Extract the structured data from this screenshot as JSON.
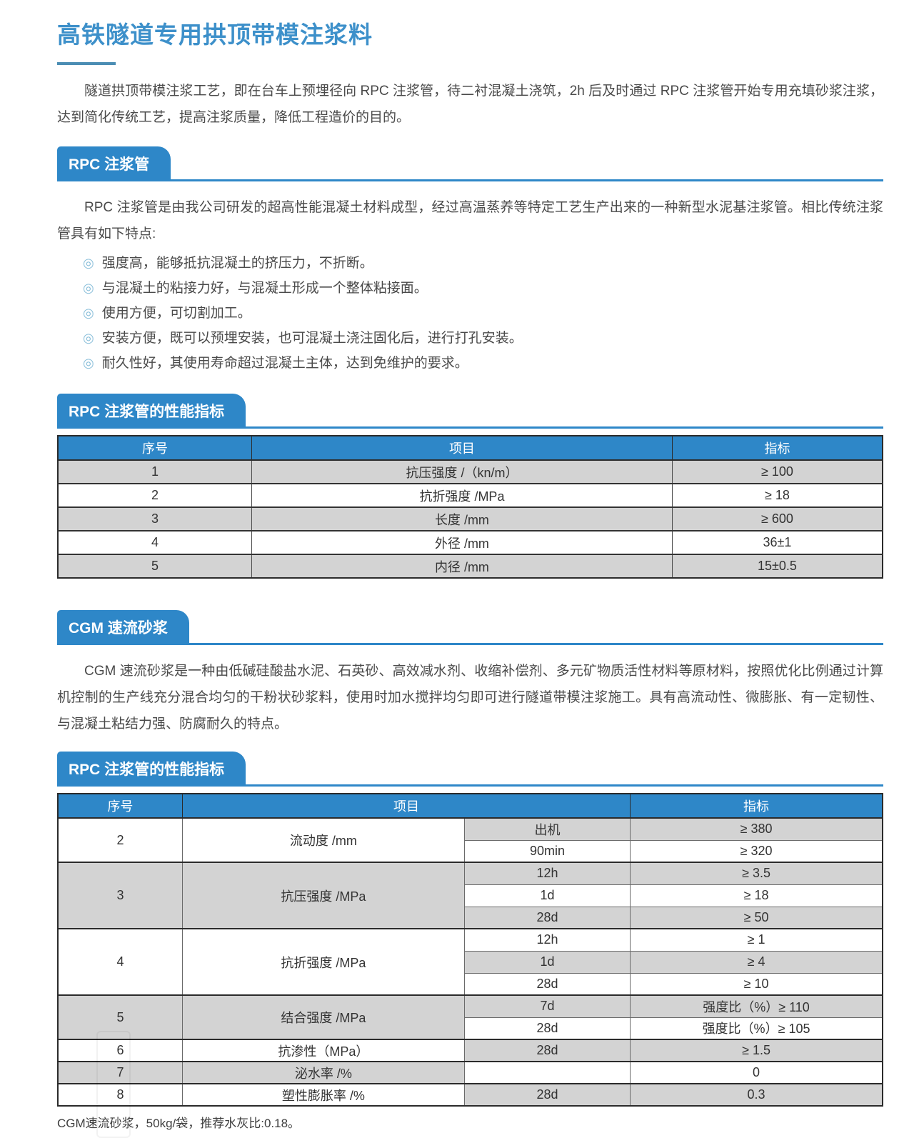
{
  "page": {
    "title": "高铁隧道专用拱顶带模注浆料",
    "intro": "隧道拱顶带模注浆工艺，即在台车上预埋径向 RPC 注浆管，待二衬混凝土浇筑，2h 后及时通过 RPC 注浆管开始专用充填砂浆注浆，达到简化传统工艺，提高注浆质量，降低工程造价的目的。",
    "footer_note": "CGM速流砂浆，50kg/袋，推荐水灰比:0.18。"
  },
  "colors": {
    "accent_blue": "#2e87c8",
    "title_blue": "#3d90ca",
    "zebra_gray": "#d3d3d3",
    "bullet_blue": "#8abfda"
  },
  "sections": {
    "rpc_pipe": {
      "tab_label": "RPC 注浆管",
      "description": "RPC 注浆管是由我公司研发的超高性能混凝土材料成型，经过高温蒸养等特定工艺生产出来的一种新型水泥基注浆管。相比传统注浆管具有如下特点:",
      "bullet_glyph": "◎",
      "features": [
        "强度高，能够抵抗混凝土的挤压力，不折断。",
        "与混凝土的粘接力好，与混凝土形成一个整体粘接面。",
        "使用方便，可切割加工。",
        "安装方便，既可以预埋安装，也可混凝土浇注固化后，进行打孔安装。",
        "耐久性好，其使用寿命超过混凝土主体，达到免维护的要求。"
      ]
    },
    "rpc_table": {
      "tab_label": "RPC 注浆管的性能指标",
      "columns": [
        "序号",
        "项目",
        "指标"
      ],
      "rows": [
        [
          "1",
          "抗压强度 /（kn/m）",
          "≥ 100"
        ],
        [
          "2",
          "抗折强度 /MPa",
          "≥ 18"
        ],
        [
          "3",
          "长度 /mm",
          "≥ 600"
        ],
        [
          "4",
          "外径 /mm",
          "36±1"
        ],
        [
          "5",
          "内径 /mm",
          "15±0.5"
        ]
      ]
    },
    "cgm": {
      "tab_label": "CGM 速流砂浆",
      "description": "CGM 速流砂浆是一种由低碱硅酸盐水泥、石英砂、高效减水剂、收缩补偿剂、多元矿物质活性材料等原材料，按照优化比例通过计算机控制的生产线充分混合均匀的干粉状砂浆料，使用时加水搅拌均匀即可进行隧道带模注浆施工。具有高流动性、微膨胀、有一定韧性、与混凝土粘结力强、防腐耐久的特点。"
    },
    "cgm_table": {
      "tab_label": "RPC 注浆管的性能指标",
      "columns": [
        "序号",
        "项目",
        "指标"
      ],
      "groups": [
        {
          "no": "2",
          "item": "流动度 /mm",
          "subs": [
            {
              "cond": "出机",
              "value": "≥ 380"
            },
            {
              "cond": "90min",
              "value": "≥ 320"
            }
          ]
        },
        {
          "no": "3",
          "item": "抗压强度 /MPa",
          "subs": [
            {
              "cond": "12h",
              "value": "≥ 3.5"
            },
            {
              "cond": "1d",
              "value": "≥ 18"
            },
            {
              "cond": "28d",
              "value": "≥ 50"
            }
          ]
        },
        {
          "no": "4",
          "item": "抗折强度 /MPa",
          "subs": [
            {
              "cond": "12h",
              "value": "≥ 1"
            },
            {
              "cond": "1d",
              "value": "≥ 4"
            },
            {
              "cond": "28d",
              "value": "≥ 10"
            }
          ]
        },
        {
          "no": "5",
          "item": "结合强度 /MPa",
          "subs": [
            {
              "cond": "7d",
              "value": "强度比（%）≥ 110"
            },
            {
              "cond": "28d",
              "value": "强度比（%）≥ 105"
            }
          ]
        },
        {
          "no": "6",
          "item": "抗渗性（MPa）",
          "subs": [
            {
              "cond": "28d",
              "value": "≥ 1.5"
            }
          ]
        },
        {
          "no": "7",
          "item": "泌水率 /%",
          "subs": [
            {
              "cond": "",
              "value": "0"
            }
          ]
        },
        {
          "no": "8",
          "item": "塑性膨胀率 /%",
          "subs": [
            {
              "cond": "28d",
              "value": "0.3"
            }
          ]
        }
      ]
    }
  }
}
